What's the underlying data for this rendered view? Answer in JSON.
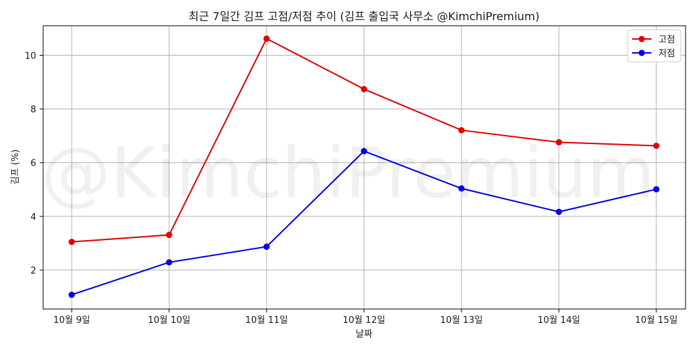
{
  "chart_data": {
    "type": "line",
    "title": "최근 7일간 김프 고점/저점 추이 (김프 출입국 사무소 @KimchiPremium)",
    "xlabel": "날짜",
    "ylabel": "김프 (%)",
    "watermark": "@KimchiPremium",
    "categories": [
      "10월 9일",
      "10월 10일",
      "10월 11일",
      "10월 12일",
      "10월 13일",
      "10월 14일",
      "10월 15일"
    ],
    "yticks": [
      2,
      4,
      6,
      8,
      10
    ],
    "ylim": [
      0.55,
      11.1
    ],
    "grid": true,
    "legend_position": "top-right",
    "series": [
      {
        "name": "고점",
        "color": "#e00000",
        "values": [
          3.05,
          3.31,
          10.62,
          8.74,
          7.21,
          6.76,
          6.63
        ]
      },
      {
        "name": "저점",
        "color": "#0000e0",
        "values": [
          1.08,
          2.29,
          2.87,
          6.43,
          5.04,
          4.17,
          5.01
        ]
      }
    ]
  }
}
